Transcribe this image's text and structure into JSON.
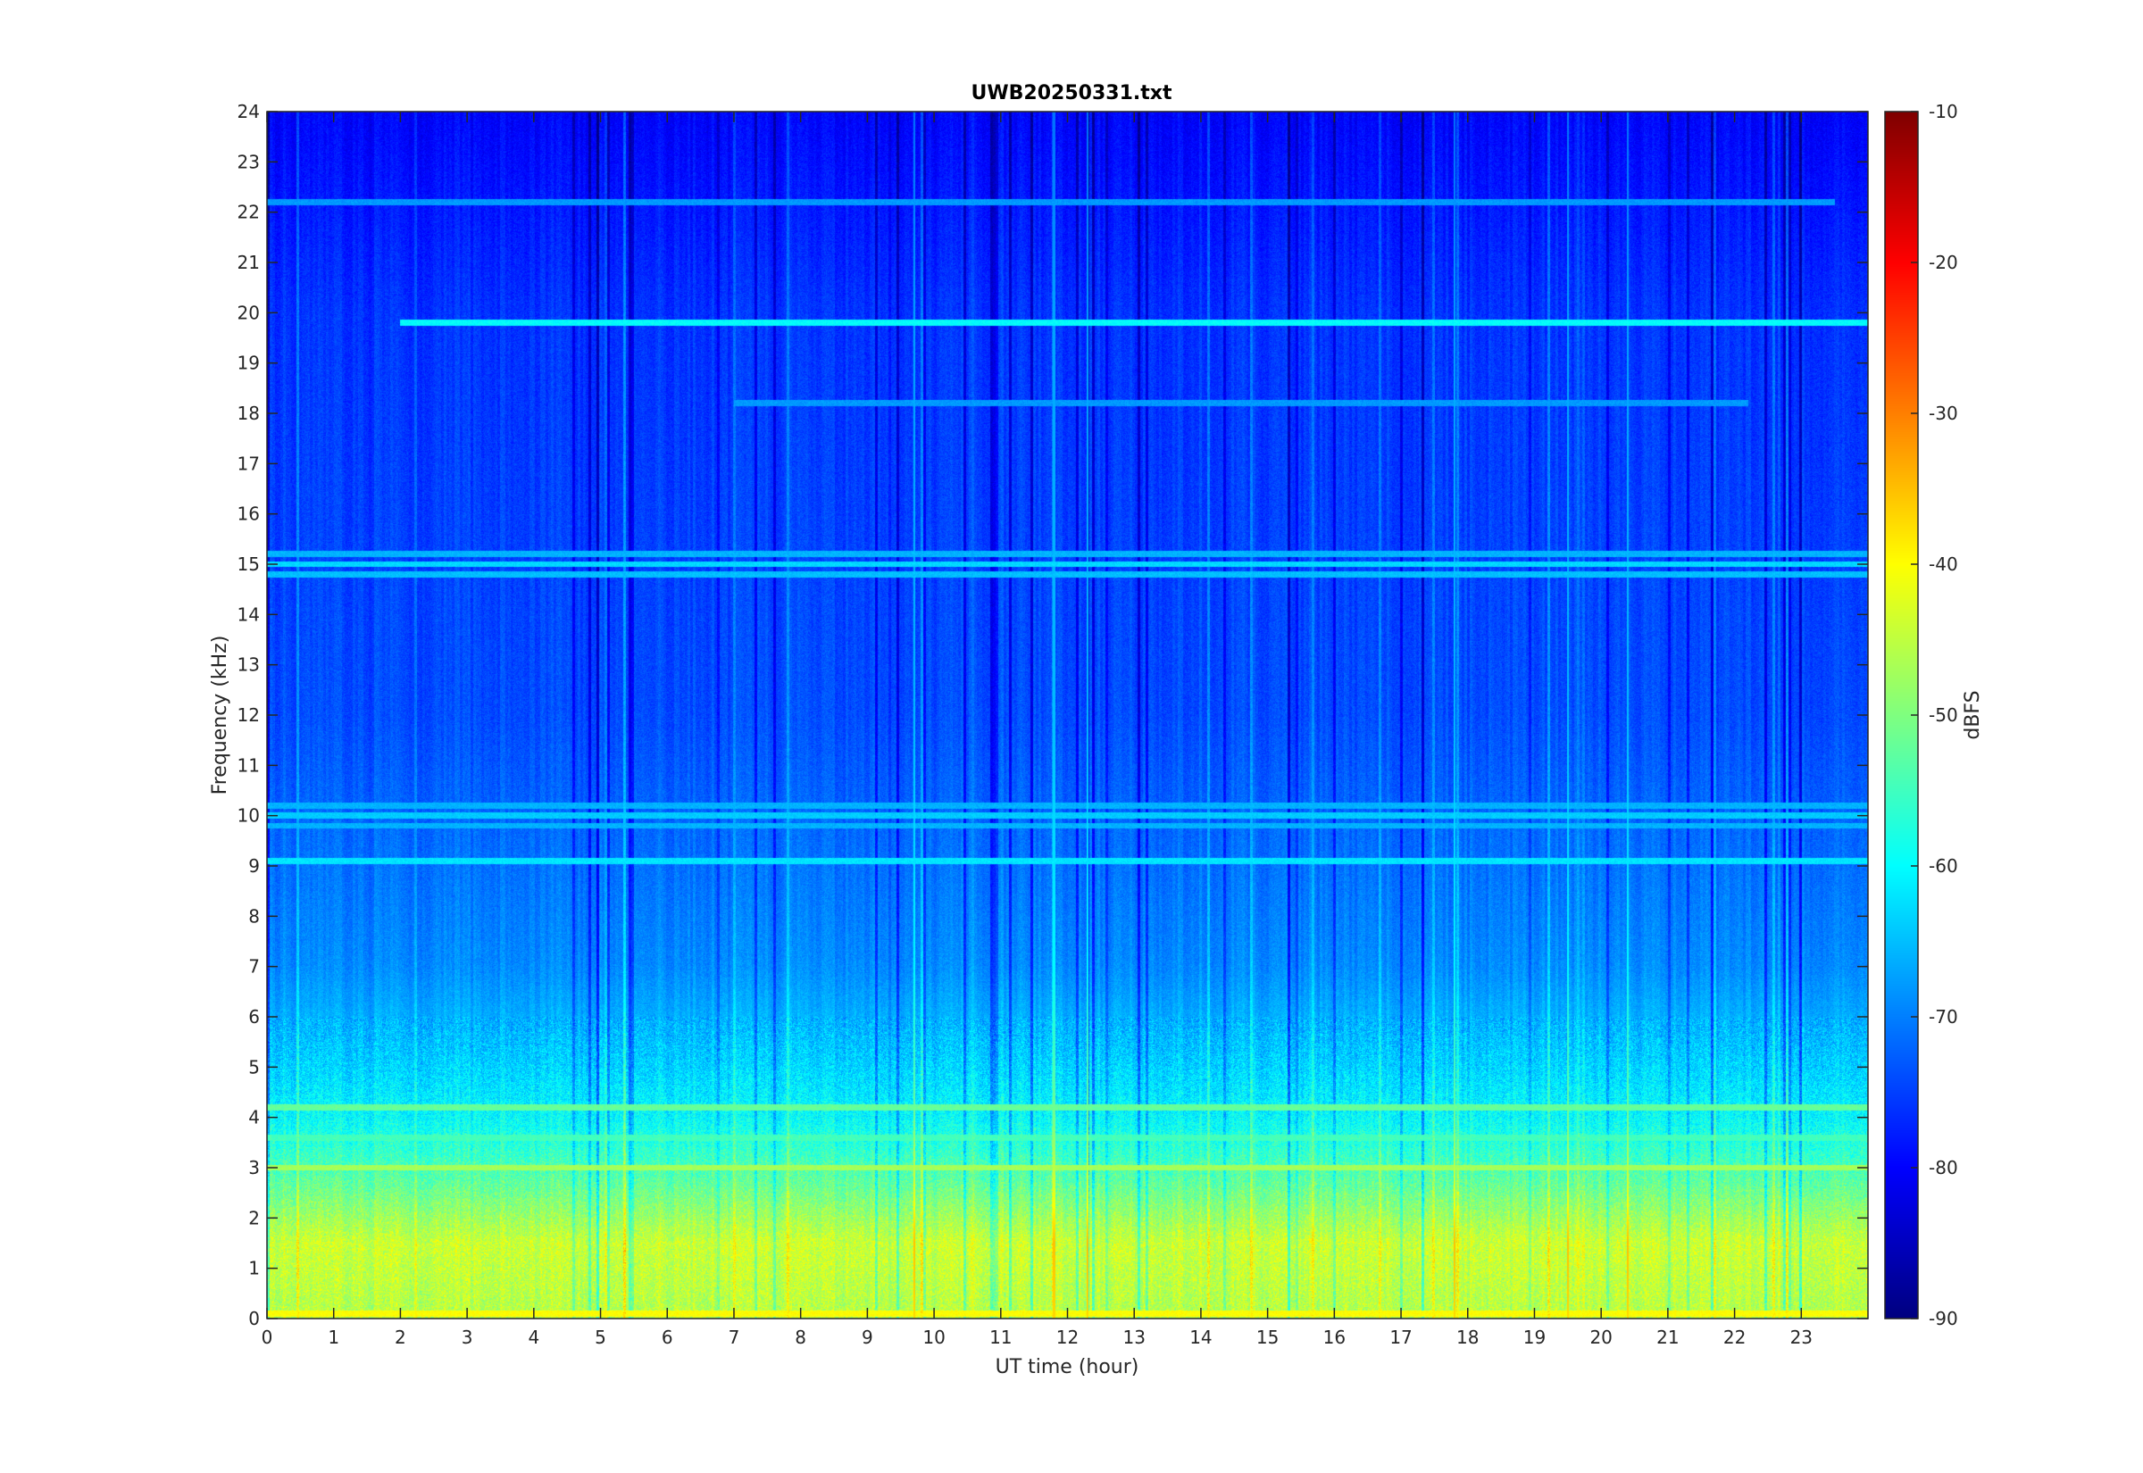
{
  "chart_data": {
    "type": "heatmap",
    "title": "UWB20250331.txt",
    "xlabel": "UT time (hour)",
    "ylabel": "Frequency (kHz)",
    "xlim": [
      0,
      24
    ],
    "ylim": [
      0,
      24
    ],
    "x_ticks": [
      "0",
      "1",
      "2",
      "3",
      "4",
      "5",
      "6",
      "7",
      "8",
      "9",
      "10",
      "11",
      "12",
      "13",
      "14",
      "15",
      "16",
      "17",
      "18",
      "19",
      "20",
      "21",
      "22",
      "23"
    ],
    "y_ticks": [
      "0",
      "1",
      "2",
      "3",
      "4",
      "5",
      "6",
      "7",
      "8",
      "9",
      "10",
      "11",
      "12",
      "13",
      "14",
      "15",
      "16",
      "17",
      "18",
      "19",
      "20",
      "21",
      "22",
      "23",
      "24"
    ],
    "colorbar": {
      "label": "dBFS",
      "colormap": "jet",
      "range": [
        -90,
        -10
      ],
      "ticks": [
        "-90",
        "-80",
        "-70",
        "-60",
        "-50",
        "-40",
        "-30",
        "-20",
        "-10"
      ]
    },
    "background_level_profile": [
      {
        "freq": 0,
        "dbfs": -46
      },
      {
        "freq": 1.5,
        "dbfs": -44
      },
      {
        "freq": 2.8,
        "dbfs": -53
      },
      {
        "freq": 4,
        "dbfs": -60
      },
      {
        "freq": 5.2,
        "dbfs": -64
      },
      {
        "freq": 7,
        "dbfs": -69
      },
      {
        "freq": 9,
        "dbfs": -71
      },
      {
        "freq": 12,
        "dbfs": -74
      },
      {
        "freq": 16,
        "dbfs": -75
      },
      {
        "freq": 20,
        "dbfs": -76
      },
      {
        "freq": 24,
        "dbfs": -80
      }
    ],
    "horizontal_lines": [
      {
        "freq": 19.8,
        "t_start": 2.0,
        "t_end": 24,
        "dbfs": -60
      },
      {
        "freq": 15.2,
        "t_start": 0,
        "t_end": 24,
        "dbfs": -66
      },
      {
        "freq": 15.0,
        "t_start": 0,
        "t_end": 24,
        "dbfs": -63
      },
      {
        "freq": 14.8,
        "t_start": 0,
        "t_end": 24,
        "dbfs": -65
      },
      {
        "freq": 10.2,
        "t_start": 0,
        "t_end": 24,
        "dbfs": -66
      },
      {
        "freq": 10.0,
        "t_start": 0,
        "t_end": 24,
        "dbfs": -64
      },
      {
        "freq": 9.8,
        "t_start": 0,
        "t_end": 24,
        "dbfs": -66
      },
      {
        "freq": 9.1,
        "t_start": 0,
        "t_end": 24,
        "dbfs": -62
      },
      {
        "freq": 22.2,
        "t_start": 0,
        "t_end": 23.5,
        "dbfs": -68
      },
      {
        "freq": 18.2,
        "t_start": 7,
        "t_end": 22.2,
        "dbfs": -68
      },
      {
        "freq": 4.2,
        "t_start": 0,
        "t_end": 24,
        "dbfs": -52
      },
      {
        "freq": 3.6,
        "t_start": 0,
        "t_end": 24,
        "dbfs": -55
      },
      {
        "freq": 3.0,
        "t_start": 0,
        "t_end": 24,
        "dbfs": -47
      },
      {
        "freq": 0.1,
        "t_start": 0,
        "t_end": 24,
        "dbfs": -40
      }
    ],
    "vertical_streaks_hours": [
      9.7,
      11.8,
      12.3,
      17.8,
      19.5,
      20.4
    ]
  }
}
